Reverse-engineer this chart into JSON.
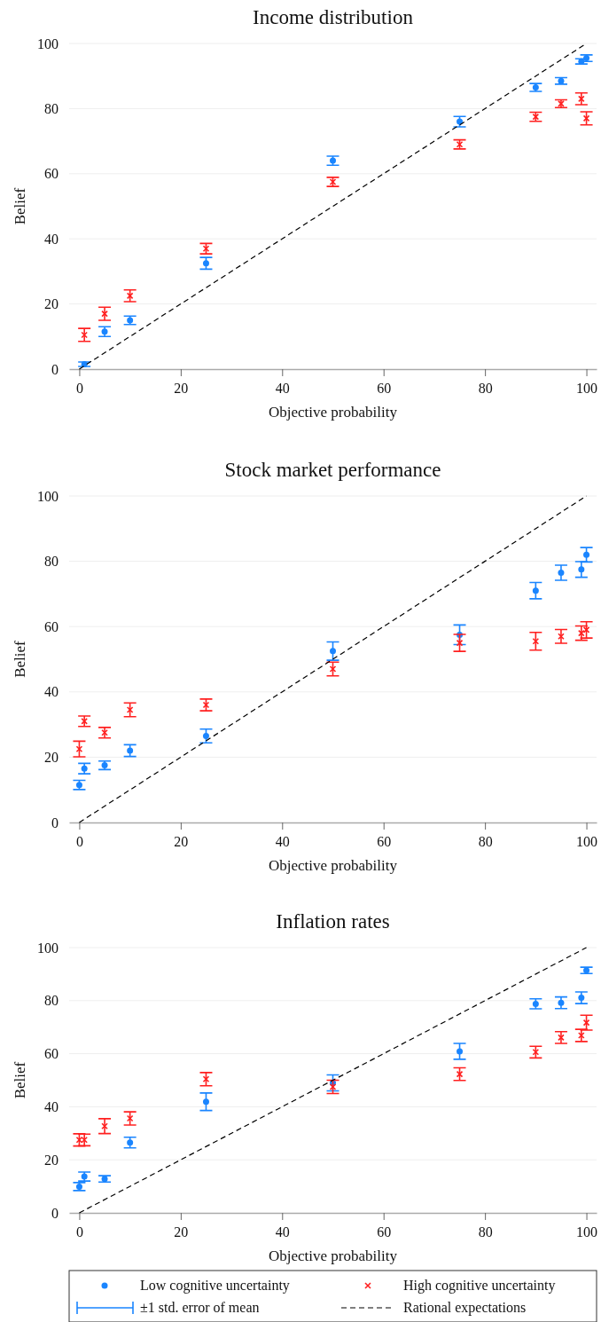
{
  "chart_data": [
    {
      "type": "scatter",
      "title": "Income distribution",
      "xlabel": "Objective probability",
      "ylabel": "Belief",
      "xlim": [
        -2,
        102
      ],
      "ylim": [
        0,
        100
      ],
      "xticks": [
        0,
        20,
        40,
        60,
        80,
        100
      ],
      "yticks": [
        0,
        20,
        40,
        60,
        80,
        100
      ],
      "grid": "y",
      "legend": false,
      "series": [
        {
          "color": "#1a85ff",
          "marker": "circle",
          "x": [
            1,
            5,
            10,
            25,
            50,
            75,
            90,
            95,
            99,
            100
          ],
          "values": [
            1.5,
            11.5,
            15,
            32.5,
            64,
            76,
            86.5,
            88.5,
            94.5,
            95.5
          ],
          "errors": [
            0.7,
            1.5,
            1.3,
            1.8,
            1.4,
            1.6,
            1.2,
            1,
            0.8,
            1
          ]
        },
        {
          "color": "#ff2020",
          "marker": "cross",
          "x": [
            1,
            5,
            10,
            25,
            50,
            75,
            90,
            95,
            99,
            100
          ],
          "values": [
            10.5,
            17,
            22.5,
            37,
            57.5,
            69,
            77.5,
            81.5,
            83,
            77
          ],
          "errors": [
            2,
            2,
            1.8,
            1.6,
            1.4,
            1.4,
            1.4,
            1.2,
            1.8,
            2
          ]
        },
        {
          "type": "line",
          "color": "#000000",
          "line_style": "dashed",
          "x": [
            0,
            100
          ],
          "values": [
            0,
            100
          ]
        }
      ]
    },
    {
      "type": "scatter",
      "title": "Stock market performance",
      "xlabel": "Objective probability",
      "ylabel": "Belief",
      "xlim": [
        -2,
        102
      ],
      "ylim": [
        0,
        100
      ],
      "xticks": [
        0,
        20,
        40,
        60,
        80,
        100
      ],
      "yticks": [
        0,
        20,
        40,
        60,
        80,
        100
      ],
      "grid": "y",
      "legend": false,
      "series": [
        {
          "color": "#1a85ff",
          "marker": "circle",
          "x": [
            0,
            1,
            5,
            10,
            25,
            50,
            75,
            90,
            95,
            99,
            100
          ],
          "values": [
            11.5,
            16.5,
            17.5,
            22,
            26.5,
            52.5,
            57.5,
            71,
            76.5,
            77.5,
            82
          ],
          "errors": [
            1.4,
            1.6,
            1.3,
            1.8,
            2.1,
            2.8,
            3,
            2.5,
            2.3,
            2.4,
            2.2
          ]
        },
        {
          "color": "#ff2020",
          "marker": "cross",
          "x": [
            0,
            1,
            5,
            10,
            25,
            50,
            75,
            90,
            95,
            99,
            100
          ],
          "values": [
            22.5,
            31,
            27.5,
            34.5,
            36,
            47,
            55,
            55.5,
            57,
            58,
            59
          ],
          "errors": [
            2.4,
            1.6,
            1.6,
            2.1,
            1.8,
            2.1,
            2.6,
            2.7,
            2.1,
            2.2,
            2.5
          ]
        },
        {
          "type": "line",
          "color": "#000000",
          "line_style": "dashed",
          "x": [
            0,
            100
          ],
          "values": [
            0,
            100
          ]
        }
      ]
    },
    {
      "type": "scatter",
      "title": "Inflation rates",
      "xlabel": "Objective probability",
      "ylabel": "Belief",
      "xlim": [
        -2,
        102
      ],
      "ylim": [
        0,
        100
      ],
      "xticks": [
        0,
        20,
        40,
        60,
        80,
        100
      ],
      "yticks": [
        0,
        20,
        40,
        60,
        80,
        100
      ],
      "grid": "y",
      "legend": "bottom",
      "annotations": [
        "±1 std. error of mean"
      ],
      "series": [
        {
          "name": "Low cognitive uncertainty",
          "color": "#1a85ff",
          "marker": "circle",
          "x": [
            0,
            1,
            5,
            10,
            25,
            50,
            75,
            90,
            95,
            99,
            100
          ],
          "values": [
            9.9,
            13.7,
            12.8,
            26.5,
            41.9,
            49,
            60.9,
            78.8,
            79.2,
            81.1,
            91.4
          ],
          "errors": [
            1.5,
            1.7,
            1.2,
            2,
            3.3,
            3,
            3,
            1.9,
            2.2,
            2.2,
            1.2
          ]
        },
        {
          "name": "High cognitive uncertainty",
          "color": "#ff2020",
          "marker": "cross",
          "x": [
            0,
            1,
            5,
            10,
            25,
            50,
            75,
            90,
            95,
            99,
            100
          ],
          "values": [
            27.5,
            27.5,
            32.7,
            35.6,
            50.4,
            47.5,
            52.3,
            60.6,
            66.1,
            66.9,
            71.7
          ],
          "errors": [
            2.3,
            2.2,
            2.8,
            2.5,
            2.5,
            2.5,
            2.4,
            2.2,
            2.2,
            2.3,
            2.8
          ]
        },
        {
          "name": "Rational expectations",
          "type": "line",
          "color": "#000000",
          "line_style": "dashed",
          "x": [
            0,
            100
          ],
          "values": [
            0,
            100
          ]
        }
      ]
    }
  ]
}
